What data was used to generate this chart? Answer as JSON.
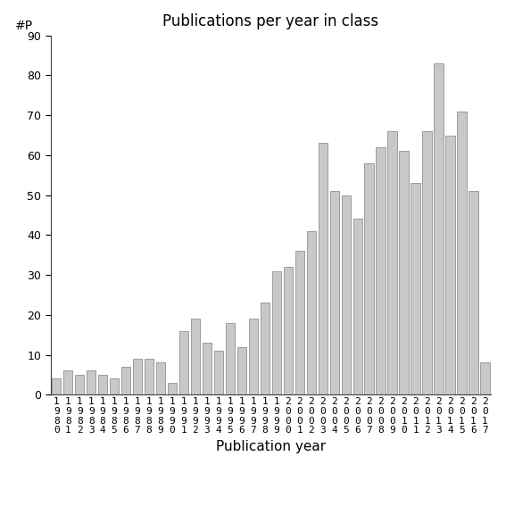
{
  "title": "Publications per year in class",
  "xlabel": "Publication year",
  "ylabel": "#P",
  "ylim": [
    0,
    90
  ],
  "yticks": [
    0,
    10,
    20,
    30,
    40,
    50,
    60,
    70,
    80,
    90
  ],
  "years": [
    "1980",
    "1981",
    "1982",
    "1983",
    "1984",
    "1985",
    "1986",
    "1987",
    "1988",
    "1989",
    "1990",
    "1991",
    "1992",
    "1993",
    "1994",
    "1995",
    "1996",
    "1997",
    "1998",
    "1999",
    "2000",
    "2001",
    "2002",
    "2003",
    "2004",
    "2005",
    "2006",
    "2007",
    "2008",
    "2009",
    "2010",
    "2011",
    "2012",
    "2013",
    "2014",
    "2015",
    "2016",
    "2017"
  ],
  "values": [
    4,
    6,
    5,
    6,
    5,
    4,
    7,
    9,
    9,
    8,
    3,
    16,
    19,
    13,
    11,
    18,
    12,
    19,
    23,
    31,
    32,
    36,
    41,
    63,
    51,
    50,
    44,
    58,
    62,
    66,
    61,
    53,
    66,
    83,
    65,
    71,
    51,
    8
  ],
  "bar_color": "#c8c8c8",
  "bar_edge_color": "#808080",
  "background_color": "#ffffff",
  "title_fontsize": 12,
  "xlabel_fontsize": 11,
  "tick_fontsize": 9,
  "ylabel_fontsize": 10
}
